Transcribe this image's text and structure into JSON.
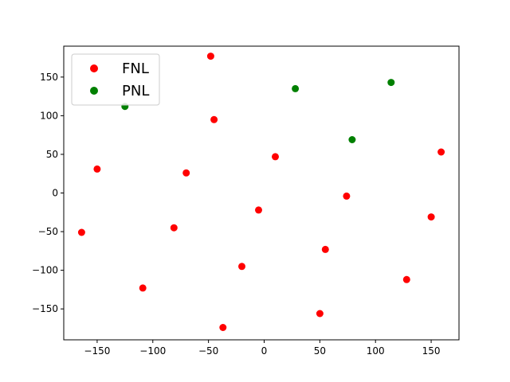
{
  "chart_data": {
    "type": "scatter",
    "title": "",
    "xlabel": "",
    "ylabel": "",
    "xlim": [
      -180,
      175
    ],
    "ylim": [
      -190,
      190
    ],
    "xticks": [
      -150,
      -100,
      -50,
      0,
      50,
      100,
      150
    ],
    "yticks": [
      -150,
      -100,
      -50,
      0,
      50,
      100,
      150
    ],
    "xtick_labels": [
      "−150",
      "−100",
      "−50",
      "0",
      "50",
      "100",
      "150"
    ],
    "ytick_labels": [
      "−150",
      "−100",
      "−50",
      "0",
      "50",
      "100",
      "150"
    ],
    "grid": false,
    "legend_position": "upper-left",
    "series": [
      {
        "name": "FNL",
        "color": "#ff0000",
        "points": [
          {
            "x": -48,
            "y": 177
          },
          {
            "x": -45,
            "y": 95
          },
          {
            "x": 10,
            "y": 47
          },
          {
            "x": 159,
            "y": 53
          },
          {
            "x": -150,
            "y": 31
          },
          {
            "x": -70,
            "y": 26
          },
          {
            "x": 74,
            "y": -4
          },
          {
            "x": -5,
            "y": -22
          },
          {
            "x": 150,
            "y": -31
          },
          {
            "x": -164,
            "y": -51
          },
          {
            "x": -81,
            "y": -45
          },
          {
            "x": 55,
            "y": -73
          },
          {
            "x": -20,
            "y": -95
          },
          {
            "x": 128,
            "y": -112
          },
          {
            "x": -109,
            "y": -123
          },
          {
            "x": 50,
            "y": -156
          },
          {
            "x": -37,
            "y": -174
          }
        ]
      },
      {
        "name": "PNL",
        "color": "#008000",
        "points": [
          {
            "x": -125,
            "y": 112
          },
          {
            "x": 28,
            "y": 135
          },
          {
            "x": 114,
            "y": 143
          },
          {
            "x": 79,
            "y": 69
          }
        ]
      }
    ]
  }
}
